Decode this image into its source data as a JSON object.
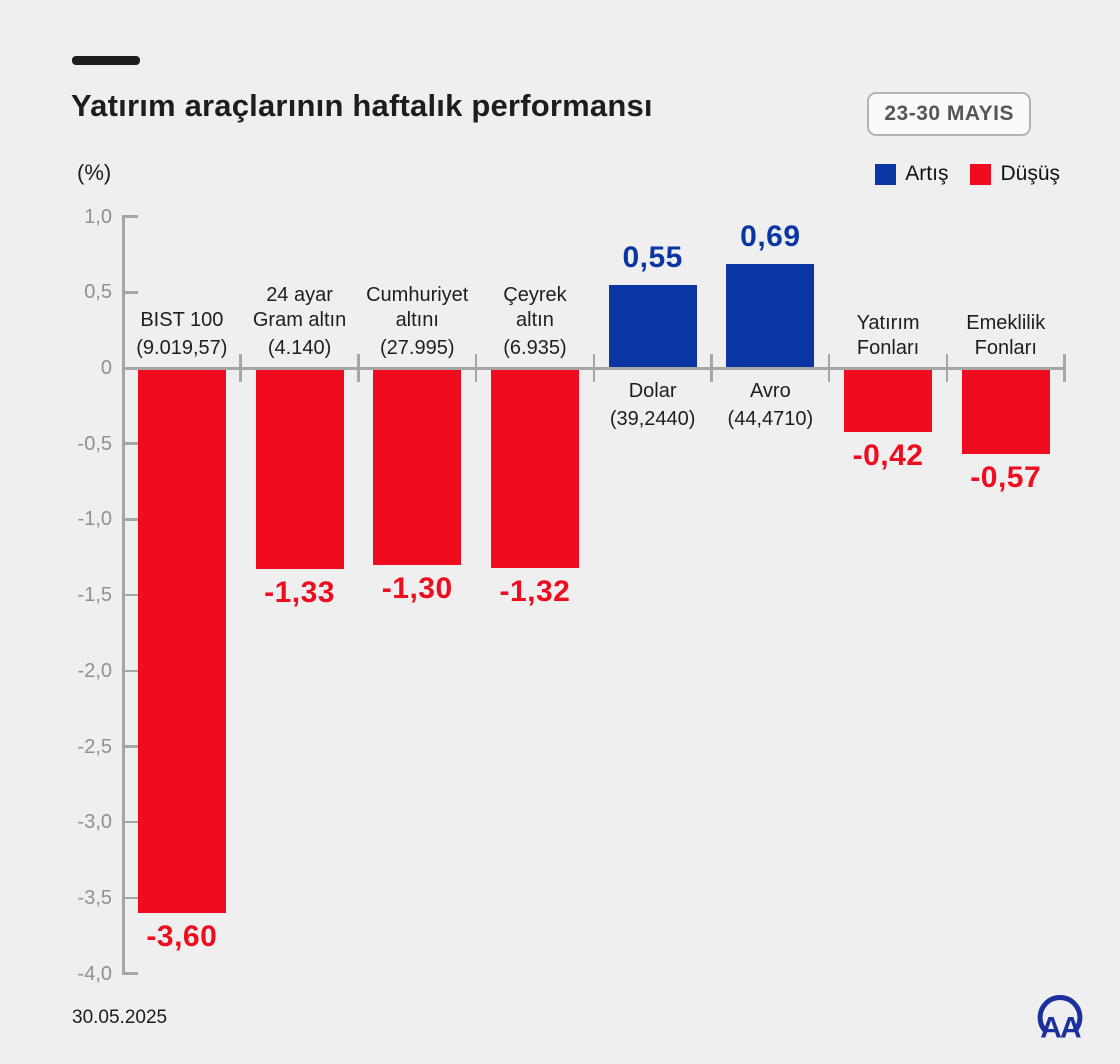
{
  "header": {
    "title": "Yatırım araçlarının haftalık performansı",
    "date_badge": "23-30 MAYIS",
    "unit_label": "(%)",
    "legend": [
      {
        "label": "Artış",
        "color": "#0a36a3"
      },
      {
        "label": "Düşüş",
        "color": "#ee0c1e"
      }
    ]
  },
  "chart_data": {
    "type": "bar",
    "title": "Yatırım araçlarının haftalık performansı",
    "ylabel": "(%)",
    "ylim": [
      -4.0,
      1.0
    ],
    "grid": false,
    "legend_position": "top-right",
    "yticks": [
      {
        "value": 1.0,
        "label": "1,0"
      },
      {
        "value": 0.5,
        "label": "0,5"
      },
      {
        "value": 0.0,
        "label": "0"
      },
      {
        "value": -0.5,
        "label": "-0,5"
      },
      {
        "value": -1.0,
        "label": "-1,0"
      },
      {
        "value": -1.5,
        "label": "-1,5"
      },
      {
        "value": -2.0,
        "label": "-2,0"
      },
      {
        "value": -2.5,
        "label": "-2,5"
      },
      {
        "value": -3.0,
        "label": "-3,0"
      },
      {
        "value": -3.5,
        "label": "-3,5"
      },
      {
        "value": -4.0,
        "label": "-4,0"
      }
    ],
    "bars": [
      {
        "name_lines": [
          "BIST 100"
        ],
        "detail": "(9.019,57)",
        "value": -3.6,
        "value_label": "-3,60"
      },
      {
        "name_lines": [
          "24 ayar",
          "Gram altın"
        ],
        "detail": "(4.140)",
        "value": -1.33,
        "value_label": "-1,33"
      },
      {
        "name_lines": [
          "Cumhuriyet",
          "altını"
        ],
        "detail": "(27.995)",
        "value": -1.3,
        "value_label": "-1,30"
      },
      {
        "name_lines": [
          "Çeyrek",
          "altın"
        ],
        "detail": "(6.935)",
        "value": -1.32,
        "value_label": "-1,32"
      },
      {
        "name_lines": [
          "Dolar"
        ],
        "detail": "(39,2440)",
        "value": 0.55,
        "value_label": "0,55"
      },
      {
        "name_lines": [
          "Avro"
        ],
        "detail": "(44,4710)",
        "value": 0.69,
        "value_label": "0,69"
      },
      {
        "name_lines": [
          "Yatırım",
          "Fonları"
        ],
        "detail": "",
        "value": -0.42,
        "value_label": "-0,42"
      },
      {
        "name_lines": [
          "Emeklilik",
          "Fonları"
        ],
        "detail": "",
        "value": -0.57,
        "value_label": "-0,57"
      }
    ],
    "colors": {
      "increase": "#0a36a3",
      "decrease": "#ee0c1e",
      "axis": "#a6a6a6",
      "tick_label": "#8f9093"
    }
  },
  "footer": {
    "date": "30.05.2025",
    "logo_text": "AA"
  }
}
